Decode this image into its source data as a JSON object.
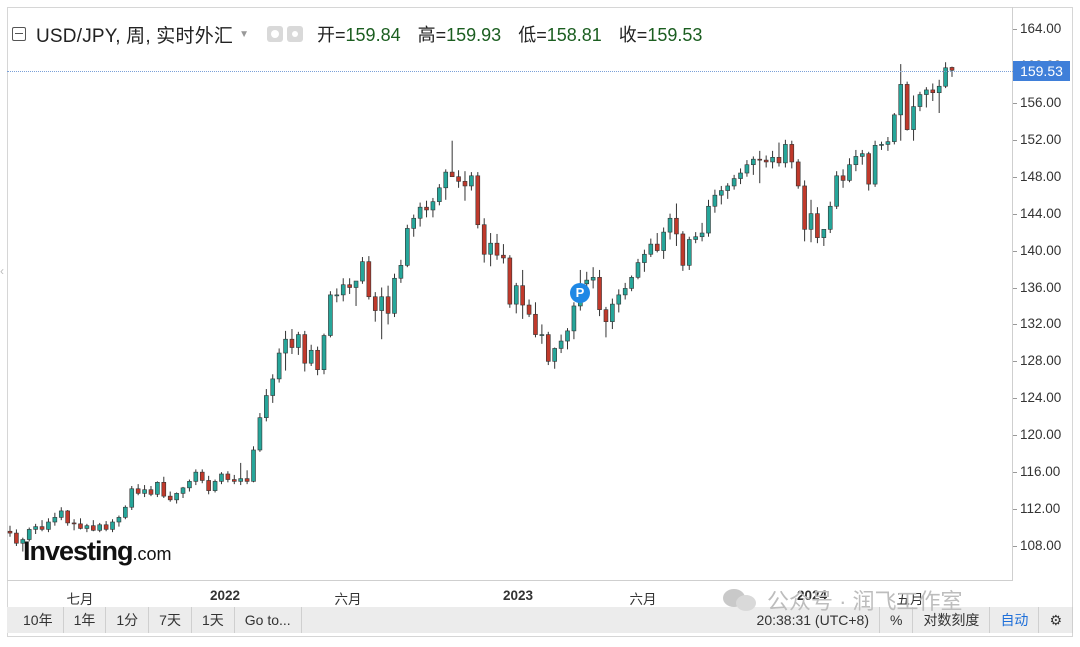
{
  "header": {
    "symbol": "USD/JPY, 周, 实时外汇",
    "open_label": "开=",
    "open_value": "159.84",
    "high_label": "高=",
    "high_value": "159.93",
    "low_label": "低=",
    "low_value": "158.81",
    "close_label": "收=",
    "close_value": "159.53"
  },
  "price_tag": "159.53",
  "marker_label": "P",
  "logo": {
    "main": "Investing",
    "suffix": ".com"
  },
  "y_axis": {
    "ticks": [
      "164.00",
      "160.00",
      "156.00",
      "152.00",
      "148.00",
      "144.00",
      "140.00",
      "136.00",
      "132.00",
      "128.00",
      "124.00",
      "120.00",
      "116.00",
      "112.00",
      "108.00"
    ]
  },
  "x_axis": {
    "labels": [
      {
        "text": "七月",
        "bold": false
      },
      {
        "text": "2022",
        "bold": true
      },
      {
        "text": "六月",
        "bold": false
      },
      {
        "text": "2023",
        "bold": true
      },
      {
        "text": "六月",
        "bold": false
      },
      {
        "text": "2024",
        "bold": true
      },
      {
        "text": "五月",
        "bold": false
      }
    ]
  },
  "toolbar": {
    "btn_10y": "10年",
    "btn_1y": "1年",
    "btn_1m": "1分",
    "btn_7d": "7天",
    "btn_1d": "1天",
    "goto": "Go to...",
    "time": "20:38:31 (UTC+8)",
    "percent": "%",
    "log": "对数刻度",
    "auto": "自动"
  },
  "watermark": "公众号 · 润飞工作室",
  "colors": {
    "up": "#26a69a",
    "down": "#c0392b",
    "accent": "#3f7fd9"
  },
  "chart_data": {
    "type": "candlestick",
    "interval": "weekly",
    "ylim": [
      104.5,
      166.0
    ],
    "series": [
      {
        "o": 109.6,
        "h": 110.2,
        "l": 109.0,
        "c": 109.4
      },
      {
        "o": 109.4,
        "h": 109.8,
        "l": 108.0,
        "c": 108.3
      },
      {
        "o": 108.3,
        "h": 108.9,
        "l": 107.4,
        "c": 108.7
      },
      {
        "o": 108.7,
        "h": 110.0,
        "l": 108.5,
        "c": 109.8
      },
      {
        "o": 109.8,
        "h": 110.4,
        "l": 109.3,
        "c": 110.1
      },
      {
        "o": 110.1,
        "h": 110.8,
        "l": 109.6,
        "c": 109.8
      },
      {
        "o": 109.8,
        "h": 111.0,
        "l": 109.5,
        "c": 110.6
      },
      {
        "o": 110.6,
        "h": 111.6,
        "l": 110.2,
        "c": 111.1
      },
      {
        "o": 111.1,
        "h": 112.2,
        "l": 110.8,
        "c": 111.8
      },
      {
        "o": 111.8,
        "h": 111.9,
        "l": 110.2,
        "c": 110.5
      },
      {
        "o": 110.5,
        "h": 110.9,
        "l": 109.7,
        "c": 110.4
      },
      {
        "o": 110.4,
        "h": 111.0,
        "l": 109.8,
        "c": 109.9
      },
      {
        "o": 109.9,
        "h": 110.4,
        "l": 109.5,
        "c": 110.2
      },
      {
        "o": 110.2,
        "h": 110.8,
        "l": 109.6,
        "c": 109.7
      },
      {
        "o": 109.7,
        "h": 110.5,
        "l": 109.5,
        "c": 110.3
      },
      {
        "o": 110.3,
        "h": 110.7,
        "l": 109.6,
        "c": 109.8
      },
      {
        "o": 109.8,
        "h": 110.9,
        "l": 109.5,
        "c": 110.6
      },
      {
        "o": 110.6,
        "h": 111.3,
        "l": 110.1,
        "c": 111.1
      },
      {
        "o": 111.1,
        "h": 112.4,
        "l": 110.9,
        "c": 112.2
      },
      {
        "o": 112.2,
        "h": 114.5,
        "l": 111.9,
        "c": 114.2
      },
      {
        "o": 114.2,
        "h": 114.7,
        "l": 113.5,
        "c": 113.7
      },
      {
        "o": 113.7,
        "h": 114.6,
        "l": 113.3,
        "c": 114.1
      },
      {
        "o": 114.1,
        "h": 114.5,
        "l": 113.4,
        "c": 113.6
      },
      {
        "o": 113.6,
        "h": 115.0,
        "l": 113.3,
        "c": 114.9
      },
      {
        "o": 114.9,
        "h": 115.5,
        "l": 113.2,
        "c": 113.4
      },
      {
        "o": 113.4,
        "h": 113.9,
        "l": 112.8,
        "c": 113.0
      },
      {
        "o": 113.0,
        "h": 113.8,
        "l": 112.6,
        "c": 113.7
      },
      {
        "o": 113.7,
        "h": 114.4,
        "l": 113.2,
        "c": 114.3
      },
      {
        "o": 114.3,
        "h": 115.2,
        "l": 113.9,
        "c": 115.0
      },
      {
        "o": 115.0,
        "h": 116.3,
        "l": 114.6,
        "c": 116.0
      },
      {
        "o": 116.0,
        "h": 116.3,
        "l": 114.8,
        "c": 115.1
      },
      {
        "o": 115.1,
        "h": 115.6,
        "l": 113.6,
        "c": 114.0
      },
      {
        "o": 114.0,
        "h": 115.2,
        "l": 113.8,
        "c": 115.0
      },
      {
        "o": 115.0,
        "h": 116.0,
        "l": 114.7,
        "c": 115.8
      },
      {
        "o": 115.8,
        "h": 116.1,
        "l": 114.9,
        "c": 115.2
      },
      {
        "o": 115.2,
        "h": 115.7,
        "l": 114.7,
        "c": 115.0
      },
      {
        "o": 115.0,
        "h": 117.0,
        "l": 114.6,
        "c": 115.3
      },
      {
        "o": 115.3,
        "h": 116.2,
        "l": 114.7,
        "c": 115.0
      },
      {
        "o": 115.0,
        "h": 118.8,
        "l": 114.9,
        "c": 118.4
      },
      {
        "o": 118.4,
        "h": 122.4,
        "l": 118.2,
        "c": 121.9
      },
      {
        "o": 121.9,
        "h": 125.0,
        "l": 121.5,
        "c": 124.3
      },
      {
        "o": 124.3,
        "h": 126.6,
        "l": 123.5,
        "c": 126.1
      },
      {
        "o": 126.1,
        "h": 129.4,
        "l": 125.7,
        "c": 128.9
      },
      {
        "o": 128.9,
        "h": 131.3,
        "l": 127.0,
        "c": 130.4
      },
      {
        "o": 130.4,
        "h": 131.5,
        "l": 128.8,
        "c": 129.5
      },
      {
        "o": 129.5,
        "h": 131.2,
        "l": 128.7,
        "c": 130.9
      },
      {
        "o": 130.9,
        "h": 131.3,
        "l": 126.9,
        "c": 127.8
      },
      {
        "o": 127.8,
        "h": 129.8,
        "l": 127.5,
        "c": 129.2
      },
      {
        "o": 129.2,
        "h": 129.6,
        "l": 126.5,
        "c": 127.1
      },
      {
        "o": 127.1,
        "h": 131.0,
        "l": 126.6,
        "c": 130.8
      },
      {
        "o": 130.8,
        "h": 135.6,
        "l": 130.6,
        "c": 135.2
      },
      {
        "o": 135.2,
        "h": 135.9,
        "l": 134.4,
        "c": 135.2
      },
      {
        "o": 135.2,
        "h": 137.0,
        "l": 134.5,
        "c": 136.3
      },
      {
        "o": 136.3,
        "h": 137.0,
        "l": 135.3,
        "c": 136.0
      },
      {
        "o": 136.0,
        "h": 136.6,
        "l": 134.0,
        "c": 136.7
      },
      {
        "o": 136.7,
        "h": 139.3,
        "l": 136.4,
        "c": 138.8
      },
      {
        "o": 138.8,
        "h": 139.4,
        "l": 134.7,
        "c": 135.0
      },
      {
        "o": 135.0,
        "h": 135.5,
        "l": 132.3,
        "c": 133.5
      },
      {
        "o": 133.5,
        "h": 136.0,
        "l": 130.4,
        "c": 135.0
      },
      {
        "o": 135.0,
        "h": 136.2,
        "l": 132.0,
        "c": 133.2
      },
      {
        "o": 133.2,
        "h": 137.5,
        "l": 132.8,
        "c": 137.0
      },
      {
        "o": 137.0,
        "h": 139.0,
        "l": 136.5,
        "c": 138.4
      },
      {
        "o": 138.4,
        "h": 142.8,
        "l": 138.2,
        "c": 142.4
      },
      {
        "o": 142.4,
        "h": 143.9,
        "l": 141.5,
        "c": 143.5
      },
      {
        "o": 143.5,
        "h": 145.2,
        "l": 142.6,
        "c": 144.7
      },
      {
        "o": 144.7,
        "h": 145.4,
        "l": 143.6,
        "c": 144.4
      },
      {
        "o": 144.4,
        "h": 145.7,
        "l": 143.6,
        "c": 145.3
      },
      {
        "o": 145.3,
        "h": 147.2,
        "l": 144.9,
        "c": 146.8
      },
      {
        "o": 146.8,
        "h": 148.8,
        "l": 145.5,
        "c": 148.5
      },
      {
        "o": 148.5,
        "h": 151.9,
        "l": 148.0,
        "c": 148.0
      },
      {
        "o": 148.0,
        "h": 148.7,
        "l": 146.8,
        "c": 147.5
      },
      {
        "o": 147.5,
        "h": 148.6,
        "l": 145.4,
        "c": 147.0
      },
      {
        "o": 147.0,
        "h": 148.5,
        "l": 146.5,
        "c": 148.1
      },
      {
        "o": 148.1,
        "h": 148.5,
        "l": 142.4,
        "c": 142.8
      },
      {
        "o": 142.8,
        "h": 143.5,
        "l": 138.7,
        "c": 139.6
      },
      {
        "o": 139.6,
        "h": 141.9,
        "l": 138.3,
        "c": 140.8
      },
      {
        "o": 140.8,
        "h": 141.8,
        "l": 139.0,
        "c": 139.5
      },
      {
        "o": 139.5,
        "h": 140.7,
        "l": 138.6,
        "c": 139.2
      },
      {
        "o": 139.2,
        "h": 139.5,
        "l": 133.8,
        "c": 134.2
      },
      {
        "o": 134.2,
        "h": 136.5,
        "l": 133.2,
        "c": 136.2
      },
      {
        "o": 136.2,
        "h": 137.9,
        "l": 132.6,
        "c": 134.1
      },
      {
        "o": 134.1,
        "h": 134.7,
        "l": 132.8,
        "c": 133.1
      },
      {
        "o": 133.1,
        "h": 134.4,
        "l": 130.6,
        "c": 130.9
      },
      {
        "o": 130.9,
        "h": 132.0,
        "l": 129.9,
        "c": 130.9
      },
      {
        "o": 130.9,
        "h": 131.2,
        "l": 127.6,
        "c": 128.0
      },
      {
        "o": 128.0,
        "h": 129.5,
        "l": 127.2,
        "c": 129.4
      },
      {
        "o": 129.4,
        "h": 130.9,
        "l": 128.9,
        "c": 130.2
      },
      {
        "o": 130.2,
        "h": 131.6,
        "l": 129.3,
        "c": 131.3
      },
      {
        "o": 131.3,
        "h": 134.4,
        "l": 130.4,
        "c": 134.0
      },
      {
        "o": 134.0,
        "h": 137.9,
        "l": 133.5,
        "c": 136.4
      },
      {
        "o": 136.4,
        "h": 137.7,
        "l": 135.5,
        "c": 136.8
      },
      {
        "o": 136.8,
        "h": 138.2,
        "l": 135.9,
        "c": 137.1
      },
      {
        "o": 137.1,
        "h": 137.9,
        "l": 132.9,
        "c": 133.6
      },
      {
        "o": 133.6,
        "h": 133.9,
        "l": 130.6,
        "c": 132.3
      },
      {
        "o": 132.3,
        "h": 134.8,
        "l": 131.5,
        "c": 134.2
      },
      {
        "o": 134.2,
        "h": 135.8,
        "l": 133.3,
        "c": 135.2
      },
      {
        "o": 135.2,
        "h": 136.5,
        "l": 134.7,
        "c": 135.9
      },
      {
        "o": 135.9,
        "h": 137.3,
        "l": 135.6,
        "c": 137.1
      },
      {
        "o": 137.1,
        "h": 139.1,
        "l": 136.9,
        "c": 138.7
      },
      {
        "o": 138.7,
        "h": 140.1,
        "l": 137.7,
        "c": 139.6
      },
      {
        "o": 139.6,
        "h": 141.3,
        "l": 139.3,
        "c": 140.7
      },
      {
        "o": 140.7,
        "h": 141.9,
        "l": 139.8,
        "c": 140.0
      },
      {
        "o": 140.0,
        "h": 142.5,
        "l": 139.1,
        "c": 142.0
      },
      {
        "o": 142.0,
        "h": 144.0,
        "l": 141.2,
        "c": 143.5
      },
      {
        "o": 143.5,
        "h": 145.1,
        "l": 140.5,
        "c": 141.8
      },
      {
        "o": 141.8,
        "h": 142.1,
        "l": 137.8,
        "c": 138.4
      },
      {
        "o": 138.4,
        "h": 141.5,
        "l": 137.9,
        "c": 141.2
      },
      {
        "o": 141.2,
        "h": 142.0,
        "l": 140.8,
        "c": 141.5
      },
      {
        "o": 141.5,
        "h": 143.0,
        "l": 141.0,
        "c": 141.9
      },
      {
        "o": 141.9,
        "h": 145.5,
        "l": 141.5,
        "c": 144.8
      },
      {
        "o": 144.8,
        "h": 146.6,
        "l": 144.1,
        "c": 146.0
      },
      {
        "o": 146.0,
        "h": 147.0,
        "l": 145.0,
        "c": 146.5
      },
      {
        "o": 146.5,
        "h": 147.3,
        "l": 145.6,
        "c": 147.0
      },
      {
        "o": 147.0,
        "h": 148.2,
        "l": 146.6,
        "c": 147.8
      },
      {
        "o": 147.8,
        "h": 148.9,
        "l": 147.2,
        "c": 148.4
      },
      {
        "o": 148.4,
        "h": 149.8,
        "l": 148.0,
        "c": 149.3
      },
      {
        "o": 149.3,
        "h": 150.2,
        "l": 148.2,
        "c": 149.9
      },
      {
        "o": 149.9,
        "h": 150.8,
        "l": 147.3,
        "c": 149.8
      },
      {
        "o": 149.8,
        "h": 150.3,
        "l": 149.0,
        "c": 149.6
      },
      {
        "o": 149.6,
        "h": 150.8,
        "l": 148.9,
        "c": 150.1
      },
      {
        "o": 150.1,
        "h": 151.7,
        "l": 149.1,
        "c": 149.5
      },
      {
        "o": 149.5,
        "h": 152.0,
        "l": 149.0,
        "c": 151.5
      },
      {
        "o": 151.5,
        "h": 151.9,
        "l": 148.9,
        "c": 149.6
      },
      {
        "o": 149.6,
        "h": 149.9,
        "l": 146.7,
        "c": 147.0
      },
      {
        "o": 147.0,
        "h": 147.6,
        "l": 141.0,
        "c": 142.3
      },
      {
        "o": 142.3,
        "h": 145.5,
        "l": 140.9,
        "c": 144.0
      },
      {
        "o": 144.0,
        "h": 144.7,
        "l": 140.8,
        "c": 141.4
      },
      {
        "o": 141.4,
        "h": 142.1,
        "l": 140.5,
        "c": 142.3
      },
      {
        "o": 142.3,
        "h": 145.3,
        "l": 141.9,
        "c": 144.8
      },
      {
        "o": 144.8,
        "h": 148.6,
        "l": 144.5,
        "c": 148.1
      },
      {
        "o": 148.1,
        "h": 148.8,
        "l": 146.8,
        "c": 147.6
      },
      {
        "o": 147.6,
        "h": 150.0,
        "l": 147.4,
        "c": 149.3
      },
      {
        "o": 149.3,
        "h": 150.9,
        "l": 148.6,
        "c": 150.2
      },
      {
        "o": 150.2,
        "h": 150.9,
        "l": 149.3,
        "c": 150.5
      },
      {
        "o": 150.5,
        "h": 150.7,
        "l": 146.5,
        "c": 147.2
      },
      {
        "o": 147.2,
        "h": 151.9,
        "l": 146.9,
        "c": 151.4
      },
      {
        "o": 151.4,
        "h": 151.8,
        "l": 150.9,
        "c": 151.5
      },
      {
        "o": 151.5,
        "h": 152.3,
        "l": 150.8,
        "c": 151.8
      },
      {
        "o": 151.8,
        "h": 154.9,
        "l": 151.5,
        "c": 154.7
      },
      {
        "o": 154.7,
        "h": 160.2,
        "l": 151.9,
        "c": 158.0
      },
      {
        "o": 158.0,
        "h": 158.3,
        "l": 153.0,
        "c": 153.1
      },
      {
        "o": 153.1,
        "h": 156.8,
        "l": 151.9,
        "c": 155.6
      },
      {
        "o": 155.6,
        "h": 157.2,
        "l": 155.1,
        "c": 156.9
      },
      {
        "o": 156.9,
        "h": 157.7,
        "l": 155.5,
        "c": 157.4
      },
      {
        "o": 157.4,
        "h": 158.1,
        "l": 156.2,
        "c": 157.1
      },
      {
        "o": 157.1,
        "h": 158.5,
        "l": 154.9,
        "c": 157.8
      },
      {
        "o": 157.8,
        "h": 160.4,
        "l": 157.6,
        "c": 159.8
      },
      {
        "o": 159.84,
        "h": 159.93,
        "l": 158.81,
        "c": 159.53
      }
    ]
  }
}
